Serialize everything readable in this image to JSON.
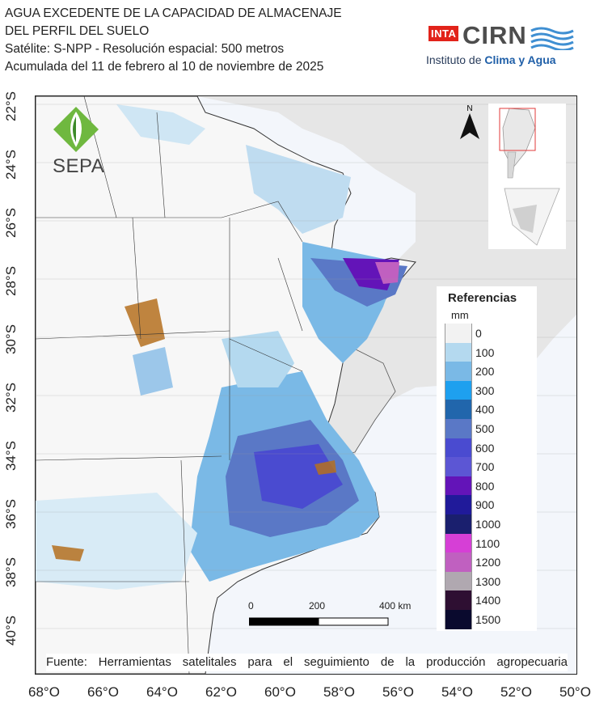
{
  "title": {
    "line1": "AGUA EXCEDENTE DE LA CAPACIDAD DE ALMACENAJE",
    "line2": "DEL PERFIL DEL SUELO",
    "line3": "Satélite: S-NPP - Resolución espacial: 500 metros",
    "line4": "Acumulada del 11 de febrero al 10 de noviembre de 2025"
  },
  "logos": {
    "inta": "INTA",
    "cirn": "CIRN",
    "institute_prefix": "Instituto de ",
    "institute_highlight": "Clima y Agua",
    "sepa": "SEPA"
  },
  "axes": {
    "latitudes": [
      "22°S",
      "24°S",
      "26°S",
      "28°S",
      "30°S",
      "32°S",
      "34°S",
      "36°S",
      "38°S",
      "40°S"
    ],
    "longitudes": [
      "68°O",
      "66°O",
      "64°O",
      "62°O",
      "60°O",
      "58°O",
      "56°O",
      "54°O",
      "52°O",
      "50°O"
    ]
  },
  "north_arrow": {
    "label": "N"
  },
  "scale_bar": {
    "labels": [
      "0",
      "200",
      "400 km"
    ]
  },
  "legend": {
    "title": "Referencias",
    "unit": "mm",
    "classes": [
      {
        "label": "0",
        "color": "#f2f2f2"
      },
      {
        "label": "100",
        "color": "#b4d9ef"
      },
      {
        "label": "200",
        "color": "#7ab9e6"
      },
      {
        "label": "300",
        "color": "#1ea0ef"
      },
      {
        "label": "400",
        "color": "#2166ac"
      },
      {
        "label": "500",
        "color": "#5a78c6"
      },
      {
        "label": "600",
        "color": "#4a4bd0"
      },
      {
        "label": "700",
        "color": "#5c56d4"
      },
      {
        "label": "800",
        "color": "#6314b8"
      },
      {
        "label": "900",
        "color": "#201a9a"
      },
      {
        "label": "1000",
        "color": "#1a1f6e"
      },
      {
        "label": "1100",
        "color": "#d63fd6"
      },
      {
        "label": "1200",
        "color": "#c060c0"
      },
      {
        "label": "1300",
        "color": "#b0a8b0"
      },
      {
        "label": "1400",
        "color": "#2e0f32"
      },
      {
        "label": "1500",
        "color": "#0a0a2e"
      }
    ]
  },
  "source": "Fuente: Herramientas satelitales para el seguimiento de la producción agropecuaria",
  "colors": {
    "ocean": "#f3f6fb",
    "neighbor_land": "#e6e6e6",
    "argentina_land": "#f7f7f7",
    "no_excess": "#f2f2f2",
    "out_of_range": "#b5701e"
  }
}
